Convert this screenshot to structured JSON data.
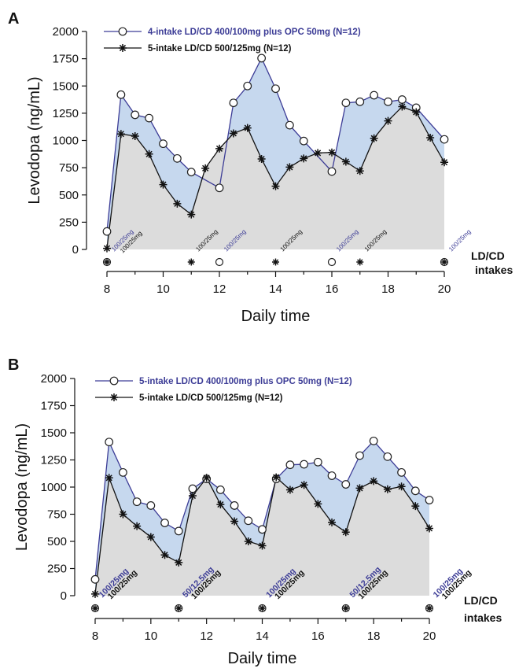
{
  "panels": [
    {
      "letter": "A",
      "legend": [
        {
          "label": "4-intake LD/CD 400/100mg plus OPC 50mg (N=12)",
          "marker": "circle",
          "color": "#3c3c96"
        },
        {
          "label": "5-intake LD/CD 500/125mg (N=12)",
          "marker": "star",
          "color": "#111111"
        }
      ],
      "intake_label_line1": "LD/CD",
      "intake_label_line2": "intakes",
      "intakes": [
        {
          "x": 8,
          "symbol": "both",
          "labels": [
            {
              "text": "100/25mg",
              "color": "#3c3c96"
            },
            {
              "text": "100/25mg",
              "color": "#111111"
            }
          ]
        },
        {
          "x": 11,
          "symbol": "star",
          "labels": [
            {
              "text": "100/25mg",
              "color": "#111111"
            }
          ]
        },
        {
          "x": 12,
          "symbol": "circle",
          "labels": [
            {
              "text": "100/25mg",
              "color": "#3c3c96"
            }
          ]
        },
        {
          "x": 14,
          "symbol": "star",
          "labels": [
            {
              "text": "100/25mg",
              "color": "#111111"
            }
          ]
        },
        {
          "x": 16,
          "symbol": "circle",
          "labels": [
            {
              "text": "100/25mg",
              "color": "#3c3c96"
            }
          ]
        },
        {
          "x": 17,
          "symbol": "star",
          "labels": [
            {
              "text": "100/25mg",
              "color": "#111111"
            }
          ]
        },
        {
          "x": 20,
          "symbol": "both",
          "labels": [
            {
              "text": "100/25mg",
              "color": "#3c3c96"
            }
          ]
        }
      ]
    },
    {
      "letter": "B",
      "legend": [
        {
          "label": "5-intake LD/CD 400/100mg plus OPC 50mg (N=12)",
          "marker": "circle",
          "color": "#3c3c96"
        },
        {
          "label": "5-intake LD/CD 500/125mg (N=12)",
          "marker": "star",
          "color": "#111111"
        }
      ],
      "intake_label_line1": "LD/CD",
      "intake_label_line2": "intakes",
      "intakes": [
        {
          "x": 8,
          "symbol": "both",
          "labels": [
            {
              "text": "100/25mg",
              "color": "#3c3c96"
            },
            {
              "text": "100/25mg",
              "color": "#111111"
            }
          ]
        },
        {
          "x": 11,
          "symbol": "both",
          "labels": [
            {
              "text": "50/12.5mg",
              "color": "#3c3c96"
            },
            {
              "text": "100/25mg",
              "color": "#111111"
            }
          ]
        },
        {
          "x": 14,
          "symbol": "both",
          "labels": [
            {
              "text": "100/25mg",
              "color": "#3c3c96"
            },
            {
              "text": "100/25mg",
              "color": "#111111"
            }
          ]
        },
        {
          "x": 17,
          "symbol": "both",
          "labels": [
            {
              "text": "50/12.5mg",
              "color": "#3c3c96"
            },
            {
              "text": "100/25mg",
              "color": "#111111"
            }
          ]
        },
        {
          "x": 20,
          "symbol": "both",
          "labels": [
            {
              "text": "100/25mg",
              "color": "#3c3c96"
            },
            {
              "text": "100/25mg",
              "color": "#111111"
            }
          ]
        }
      ]
    }
  ],
  "colors": {
    "opc_line": "#3c3c96",
    "opc_fill": "#c6d8ee",
    "ref_line": "#111111",
    "ref_fill": "#dcdcdc"
  },
  "chart_data": [
    {
      "type": "line",
      "title": "",
      "xlabel": "Daily time",
      "ylabel": "Levodopa (ng/mL)",
      "xlim": [
        8,
        20
      ],
      "ylim": [
        0,
        2000
      ],
      "xticks": [
        8,
        10,
        12,
        14,
        16,
        18,
        20
      ],
      "yticks": [
        0,
        250,
        500,
        750,
        1000,
        1250,
        1500,
        1750,
        2000
      ],
      "grid": false,
      "legend_position": "top",
      "series": [
        {
          "name": "4-intake LD/CD 400/100mg plus OPC 50mg (N=12)",
          "marker": "circle",
          "x": [
            8,
            8.5,
            9,
            9.5,
            10,
            10.5,
            11,
            12,
            12.5,
            13,
            13.5,
            14,
            14.5,
            15,
            16,
            16.5,
            17,
            17.5,
            18,
            18.5,
            19,
            20
          ],
          "y": [
            165,
            1420,
            1235,
            1205,
            970,
            835,
            710,
            565,
            1345,
            1500,
            1755,
            1475,
            1140,
            995,
            715,
            1345,
            1355,
            1415,
            1355,
            1375,
            1300,
            1010
          ]
        },
        {
          "name": "5-intake LD/CD 500/125mg (N=12)",
          "marker": "star",
          "x": [
            8,
            8.5,
            9,
            9.5,
            10,
            10.5,
            11,
            11.5,
            12,
            12.5,
            13,
            13.5,
            14,
            14.5,
            15,
            15.5,
            16,
            16.5,
            17,
            17.5,
            18,
            18.5,
            19,
            19.5,
            20
          ],
          "y": [
            10,
            1060,
            1040,
            875,
            595,
            420,
            320,
            745,
            925,
            1065,
            1115,
            830,
            580,
            755,
            835,
            885,
            890,
            805,
            720,
            1020,
            1180,
            1310,
            1260,
            1025,
            800
          ]
        }
      ]
    },
    {
      "type": "line",
      "title": "",
      "xlabel": "Daily time",
      "ylabel": "Levodopa (ng/mL)",
      "xlim": [
        8,
        20
      ],
      "ylim": [
        0,
        2000
      ],
      "xticks": [
        8,
        10,
        12,
        14,
        16,
        18,
        20
      ],
      "yticks": [
        0,
        250,
        500,
        750,
        1000,
        1250,
        1500,
        1750,
        2000
      ],
      "grid": false,
      "legend_position": "top",
      "series": [
        {
          "name": "5-intake LD/CD 400/100mg plus OPC 50mg (N=12)",
          "marker": "circle",
          "x": [
            8,
            8.5,
            9,
            9.5,
            10,
            10.5,
            11,
            11.5,
            12,
            12.5,
            13,
            13.5,
            14,
            14.5,
            15,
            15.5,
            16,
            16.5,
            17,
            17.5,
            18,
            18.5,
            19,
            19.5,
            20
          ],
          "y": [
            150,
            1415,
            1135,
            865,
            830,
            670,
            595,
            985,
            1075,
            975,
            830,
            690,
            610,
            1075,
            1205,
            1210,
            1230,
            1105,
            1025,
            1290,
            1425,
            1280,
            1135,
            965,
            880
          ]
        },
        {
          "name": "5-intake LD/CD 500/125mg (N=12)",
          "marker": "star",
          "x": [
            8,
            8.5,
            9,
            9.5,
            10,
            10.5,
            11,
            11.5,
            12,
            12.5,
            13,
            13.5,
            14,
            14.5,
            15,
            15.5,
            16,
            16.5,
            17,
            17.5,
            18,
            18.5,
            19,
            19.5,
            20
          ],
          "y": [
            15,
            1085,
            750,
            640,
            540,
            375,
            305,
            920,
            1085,
            840,
            685,
            500,
            460,
            1090,
            975,
            1020,
            845,
            675,
            585,
            990,
            1055,
            980,
            1005,
            825,
            620
          ]
        }
      ]
    }
  ]
}
